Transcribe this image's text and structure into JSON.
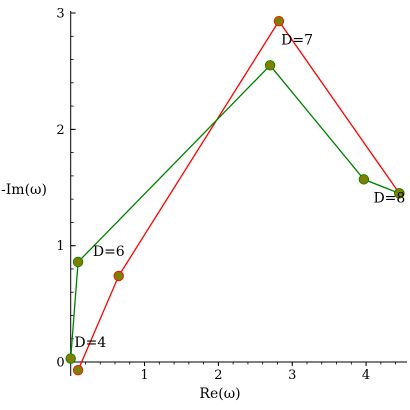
{
  "chart_data": {
    "type": "line",
    "xlabel": "Re(ω)",
    "ylabel": "-Im(ω)",
    "xlim": [
      -0.05,
      4.5
    ],
    "ylim": [
      -0.12,
      3.0
    ],
    "x_ticks": [
      1,
      2,
      3,
      4
    ],
    "y_ticks": [
      0,
      1,
      2,
      3
    ],
    "grid": false,
    "series": [
      {
        "color": "#ff0000",
        "x": [
          0.1,
          0.65,
          2.82,
          4.45
        ],
        "y": [
          -0.07,
          0.74,
          2.93,
          1.45
        ]
      },
      {
        "color": "#008000",
        "x": [
          0.0,
          0.1,
          2.7,
          3.97,
          4.45
        ],
        "y": [
          0.03,
          0.86,
          2.55,
          1.57,
          1.45
        ]
      }
    ],
    "marker_color": "#808000",
    "annotations": [
      {
        "text": "D=4",
        "x": 0.05,
        "y": 0.13
      },
      {
        "text": "D=6",
        "x": 0.3,
        "y": 0.91
      },
      {
        "text": "D=7",
        "x": 2.85,
        "y": 2.73
      },
      {
        "text": "D=8",
        "x": 4.1,
        "y": 1.37
      }
    ]
  }
}
